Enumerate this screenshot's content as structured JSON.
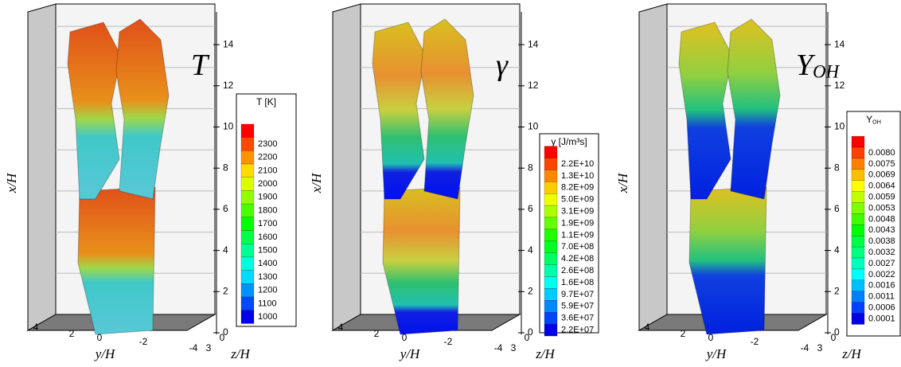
{
  "axes": {
    "x_title": "x/H",
    "y_title": "y/H",
    "z_title": "z/H",
    "x_ticks": [
      "0",
      "2",
      "4",
      "6",
      "8",
      "10",
      "12",
      "14"
    ],
    "y_ticks": [
      "4",
      "2",
      "0",
      "-2",
      "-4"
    ],
    "z_ticks": [
      "3",
      "0"
    ]
  },
  "panels": [
    {
      "symbol": {
        "main": "T"
      },
      "colorbar": {
        "title": {
          "main": "T [K]"
        },
        "labels": [
          "2300",
          "2200",
          "2100",
          "2000",
          "1900",
          "1800",
          "1700",
          "1600",
          "1500",
          "1400",
          "1300",
          "1200",
          "1100",
          "1000"
        ]
      }
    },
    {
      "symbol": {
        "main": "γ"
      },
      "colorbar": {
        "title": {
          "main": "γ [J/m³s]"
        },
        "labels": [
          "2.2E+10",
          "1.3E+10",
          "8.2E+09",
          "5.0E+09",
          "3.1E+09",
          "1.9E+09",
          "1.1E+09",
          "7.0E+08",
          "4.2E+08",
          "2.6E+08",
          "1.6E+08",
          "9.7E+07",
          "5.9E+07",
          "3.6E+07",
          "2.2E+07"
        ]
      }
    },
    {
      "symbol": {
        "main": "Y",
        "sub": "OH"
      },
      "colorbar": {
        "title": {
          "main": "Y",
          "sub": "OH"
        },
        "labels": [
          "0.0080",
          "0.0075",
          "0.0069",
          "0.0064",
          "0.0059",
          "0.0053",
          "0.0048",
          "0.0043",
          "0.0038",
          "0.0032",
          "0.0027",
          "0.0022",
          "0.0016",
          "0.0011",
          "0.0006",
          "0.0001"
        ]
      }
    }
  ]
}
